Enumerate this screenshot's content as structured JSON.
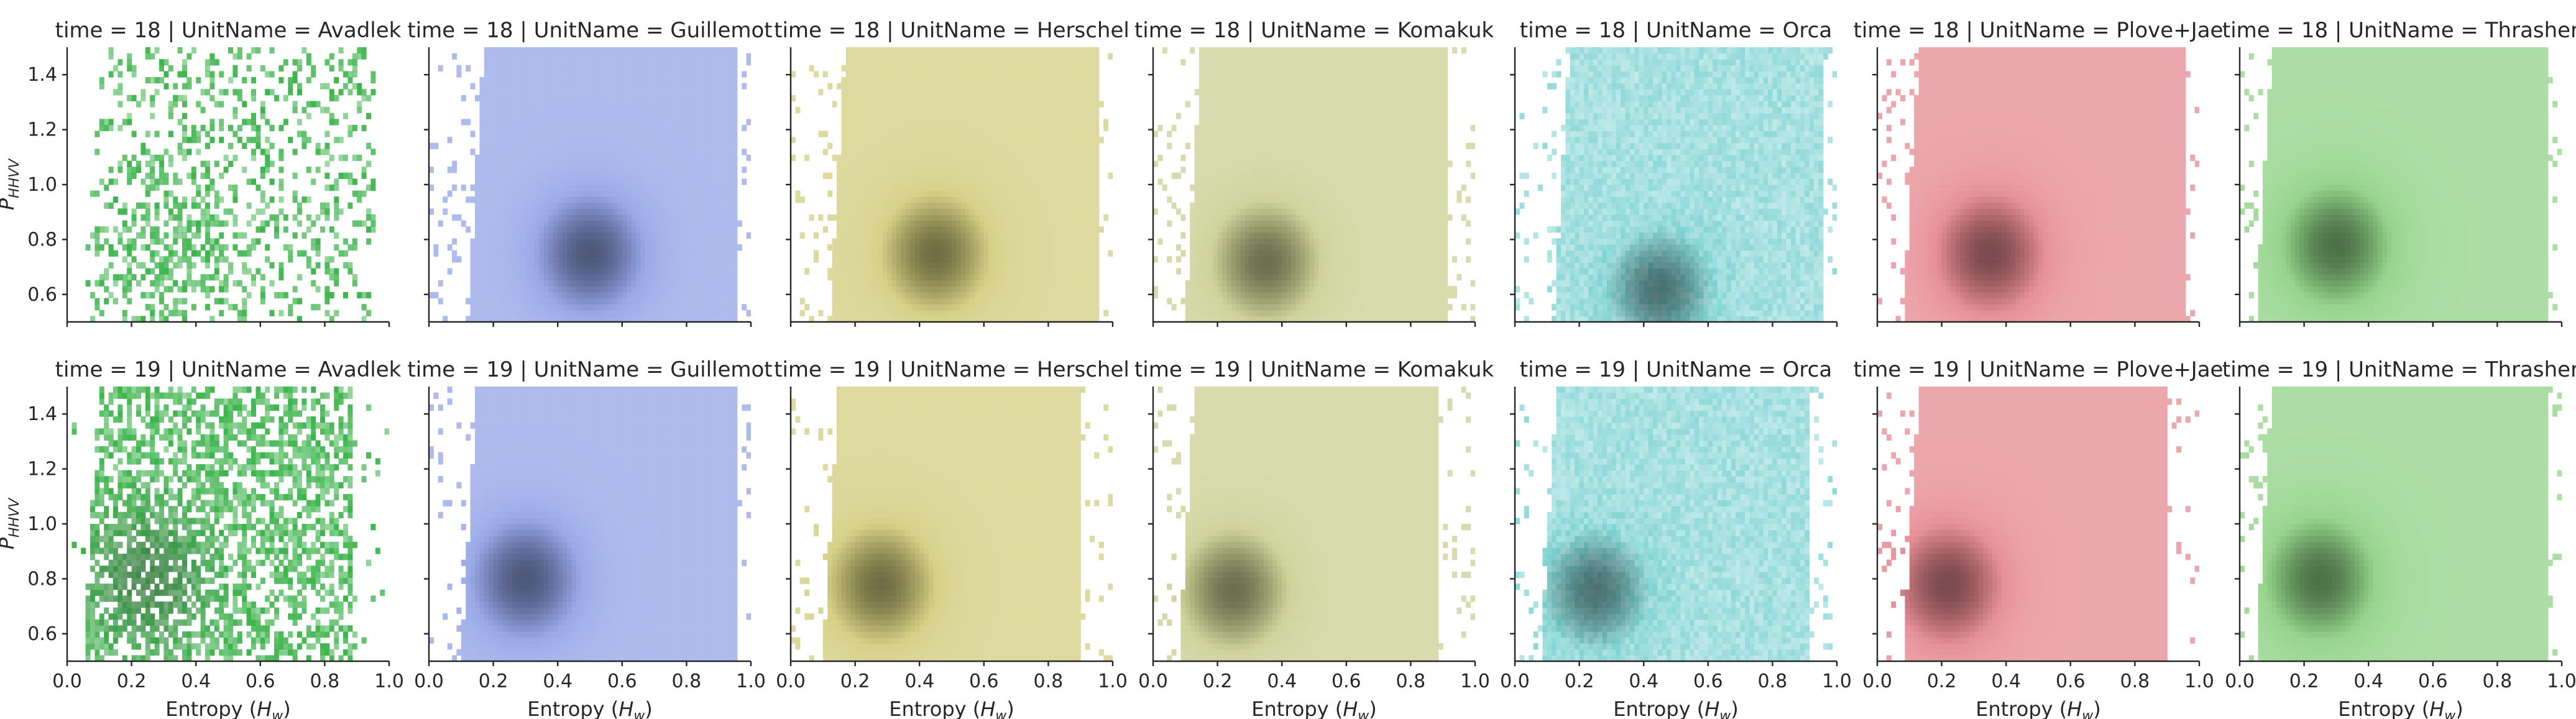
{
  "chart_data": {
    "type": "heatmap",
    "facet_title_template": "time = {row} | UnitName = {col}",
    "rows": [
      "18",
      "19"
    ],
    "cols": [
      "Avadlek",
      "Guillemot",
      "Herschel",
      "Komakuk",
      "Orca",
      "Plove+Jae",
      "Thrasher"
    ],
    "xlabel": "Entropy (",
    "xlabel_sub": "w",
    "ylabel": "P",
    "ylabel_sub": "HHVV",
    "xlim": [
      0.0,
      1.0
    ],
    "ylim": [
      0.5,
      1.5
    ],
    "xticks": [
      "0.0",
      "0.2",
      "0.4",
      "0.6",
      "0.8",
      "1.0"
    ],
    "yticks": [
      "0.6",
      "0.8",
      "1.0",
      "1.2",
      "1.4"
    ],
    "grid": false,
    "colors": {
      "Avadlek": "#3cb44b",
      "Guillemot": "#4a67d6",
      "Herschel": "#b5ac2a",
      "Komakuk": "#a8b04a",
      "Orca": "#3fbdbd",
      "Plove+Jae": "#d43b48",
      "Thrasher": "#44b334",
      "dark": "#333333"
    },
    "panels": [
      {
        "row": "18",
        "col": "Avadlek",
        "style": "sparse",
        "density_peak": [
          0.35,
          0.8
        ],
        "x_range": [
          0.05,
          0.95
        ],
        "y_range": [
          0.5,
          1.5
        ]
      },
      {
        "row": "18",
        "col": "Guillemot",
        "style": "smooth",
        "density_peak": [
          0.5,
          0.75
        ],
        "x_range": [
          0.12,
          0.95
        ],
        "y_range": [
          0.5,
          1.5
        ]
      },
      {
        "row": "18",
        "col": "Herschel",
        "style": "smooth",
        "density_peak": [
          0.45,
          0.75
        ],
        "x_range": [
          0.12,
          0.95
        ],
        "y_range": [
          0.5,
          1.5
        ]
      },
      {
        "row": "18",
        "col": "Komakuk",
        "style": "smooth",
        "density_peak": [
          0.35,
          0.72
        ],
        "x_range": [
          0.1,
          0.92
        ],
        "y_range": [
          0.5,
          1.5
        ]
      },
      {
        "row": "18",
        "col": "Orca",
        "style": "grainy",
        "density_peak": [
          0.45,
          0.62
        ],
        "x_range": [
          0.12,
          0.95
        ],
        "y_range": [
          0.5,
          1.5
        ]
      },
      {
        "row": "18",
        "col": "Plove+Jae",
        "style": "smooth",
        "density_peak": [
          0.35,
          0.75
        ],
        "x_range": [
          0.08,
          0.95
        ],
        "y_range": [
          0.5,
          1.5
        ]
      },
      {
        "row": "18",
        "col": "Thrasher",
        "style": "smooth",
        "density_peak": [
          0.3,
          0.78
        ],
        "x_range": [
          0.05,
          0.95
        ],
        "y_range": [
          0.5,
          1.5
        ]
      },
      {
        "row": "19",
        "col": "Avadlek",
        "style": "streaky",
        "density_peak": [
          0.25,
          0.8
        ],
        "x_range": [
          0.05,
          0.88
        ],
        "y_range": [
          0.5,
          1.5
        ]
      },
      {
        "row": "19",
        "col": "Guillemot",
        "style": "smooth",
        "density_peak": [
          0.3,
          0.8
        ],
        "x_range": [
          0.1,
          0.95
        ],
        "y_range": [
          0.5,
          1.5
        ]
      },
      {
        "row": "19",
        "col": "Herschel",
        "style": "smooth",
        "density_peak": [
          0.28,
          0.78
        ],
        "x_range": [
          0.1,
          0.9
        ],
        "y_range": [
          0.5,
          1.5
        ]
      },
      {
        "row": "19",
        "col": "Komakuk",
        "style": "smooth",
        "density_peak": [
          0.25,
          0.76
        ],
        "x_range": [
          0.08,
          0.88
        ],
        "y_range": [
          0.5,
          1.5
        ]
      },
      {
        "row": "19",
        "col": "Orca",
        "style": "grainy",
        "density_peak": [
          0.25,
          0.76
        ],
        "x_range": [
          0.08,
          0.92
        ],
        "y_range": [
          0.5,
          1.5
        ]
      },
      {
        "row": "19",
        "col": "Plove+Jae",
        "style": "smooth",
        "density_peak": [
          0.22,
          0.78
        ],
        "x_range": [
          0.08,
          0.9
        ],
        "y_range": [
          0.5,
          1.5
        ]
      },
      {
        "row": "19",
        "col": "Thrasher",
        "style": "smooth",
        "density_peak": [
          0.25,
          0.8
        ],
        "x_range": [
          0.05,
          0.95
        ],
        "y_range": [
          0.5,
          1.5
        ]
      }
    ]
  }
}
